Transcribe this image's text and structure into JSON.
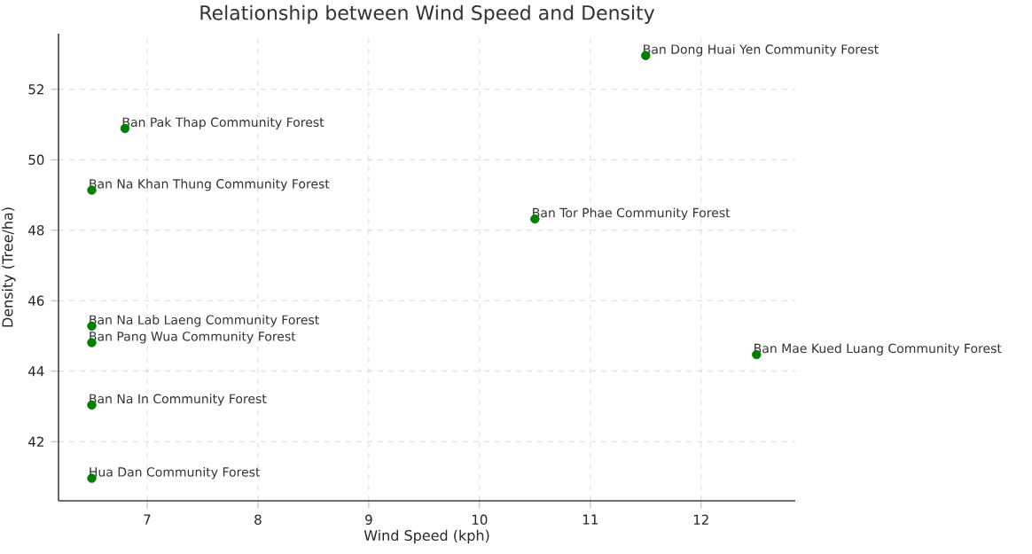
{
  "chart_data": {
    "type": "scatter",
    "title": "Relationship between Wind Speed and Density",
    "xlabel": "Wind Speed (kph)",
    "ylabel": "Density (Tree/ha)",
    "x": [
      11.5,
      6.8,
      6.5,
      10.5,
      6.5,
      6.5,
      12.5,
      6.5,
      6.5
    ],
    "series": [
      {
        "color": "#008000",
        "values": [
          52.96,
          50.89,
          49.14,
          48.32,
          45.28,
          44.81,
          44.47,
          43.04,
          40.96
        ]
      }
    ],
    "annotations": [
      {
        "text": "Ban Dong Huai Yen Community Forest",
        "x": 11.5,
        "y": 52.96
      },
      {
        "text": "Ban Pak Thap Community Forest",
        "x": 6.8,
        "y": 50.89
      },
      {
        "text": "Ban Na Khan Thung Community Forest",
        "x": 6.5,
        "y": 49.14
      },
      {
        "text": "Ban Tor Phae Community Forest",
        "x": 10.5,
        "y": 48.32
      },
      {
        "text": "Ban Na Lab Laeng Community Forest",
        "x": 6.5,
        "y": 45.28
      },
      {
        "text": "Ban Pang Wua Community Forest",
        "x": 6.5,
        "y": 44.81
      },
      {
        "text": "Ban Mae Kued Luang Community Forest",
        "x": 12.5,
        "y": 44.47
      },
      {
        "text": "Ban Na In Community Forest",
        "x": 6.5,
        "y": 43.04
      },
      {
        "text": "Hua Dan Community Forest",
        "x": 6.5,
        "y": 40.96
      }
    ],
    "xlim": [
      6.2,
      12.85
    ],
    "ylim": [
      40.32,
      53.58
    ],
    "xticks": [
      7,
      8,
      9,
      10,
      11,
      12
    ],
    "yticks": [
      42,
      44,
      46,
      48,
      50,
      52
    ],
    "grid": true,
    "marker": "circle"
  }
}
